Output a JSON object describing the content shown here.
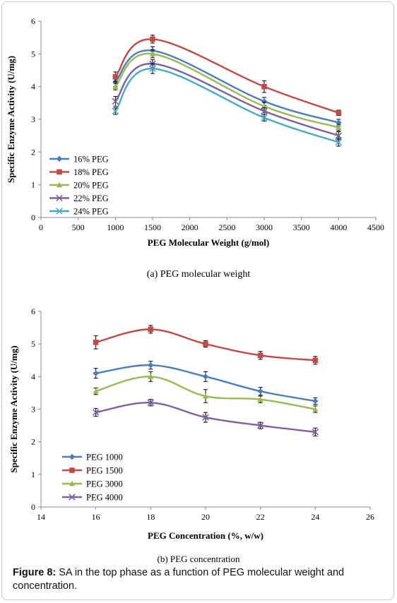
{
  "figure": {
    "label": "Figure 8:",
    "text": "SA in the top phase as a function of PEG molecular weight and concentration."
  },
  "chart_data": [
    {
      "type": "line",
      "caption": "(a) PEG molecular weight",
      "xlabel": "PEG Molecular Weight (g/mol)",
      "ylabel": "Specific Enzyme Activity (U/mg)",
      "xlim": [
        0,
        4500
      ],
      "ylim": [
        0,
        6
      ],
      "xticks": [
        0,
        500,
        1000,
        1500,
        2000,
        2500,
        3000,
        3500,
        4000,
        4500
      ],
      "yticks": [
        0,
        1,
        2,
        3,
        4,
        5,
        6
      ],
      "grid": false,
      "legend": "bottom-left",
      "x": [
        1000,
        1500,
        3000,
        4000
      ],
      "series": [
        {
          "name": "16% PEG",
          "color": "#4a7ebb",
          "marker": "diamond",
          "values": [
            4.15,
            5.1,
            3.55,
            2.9
          ],
          "errors": [
            0.15,
            0.12,
            0.12,
            0.1
          ]
        },
        {
          "name": "18% PEG",
          "color": "#be4b48",
          "marker": "square",
          "values": [
            4.3,
            5.45,
            4.0,
            3.2
          ],
          "errors": [
            0.15,
            0.12,
            0.18,
            0.08
          ]
        },
        {
          "name": "20% PEG",
          "color": "#98b954",
          "marker": "triangle",
          "values": [
            4.0,
            5.0,
            3.4,
            2.75
          ],
          "errors": [
            0.1,
            0.12,
            0.12,
            0.1
          ]
        },
        {
          "name": "22% PEG",
          "color": "#7d60a0",
          "marker": "x",
          "values": [
            3.55,
            4.7,
            3.25,
            2.5
          ],
          "errors": [
            0.15,
            0.12,
            0.1,
            0.12
          ]
        },
        {
          "name": "24% PEG",
          "color": "#46aac5",
          "marker": "x",
          "values": [
            3.25,
            4.55,
            3.05,
            2.3
          ],
          "errors": [
            0.1,
            0.15,
            0.1,
            0.12
          ]
        }
      ]
    },
    {
      "type": "line",
      "caption": "(b) PEG concentration",
      "xlabel": "PEG Concentration (%, w/w)",
      "ylabel": "Specific Enzyme Activity (U/mg)",
      "xlim": [
        14,
        26
      ],
      "ylim": [
        0,
        6
      ],
      "xticks": [
        14,
        16,
        18,
        20,
        22,
        24,
        26
      ],
      "yticks": [
        0,
        1,
        2,
        3,
        4,
        5,
        6
      ],
      "grid": false,
      "legend": "bottom-left",
      "x": [
        16,
        18,
        20,
        22,
        24
      ],
      "series": [
        {
          "name": "PEG 1000",
          "color": "#4a7ebb",
          "marker": "diamond",
          "values": [
            4.1,
            4.35,
            4.0,
            3.55,
            3.25
          ],
          "errors": [
            0.15,
            0.12,
            0.15,
            0.12,
            0.1
          ]
        },
        {
          "name": "PEG 1500",
          "color": "#be4b48",
          "marker": "square",
          "values": [
            5.05,
            5.45,
            5.0,
            4.65,
            4.5
          ],
          "errors": [
            0.2,
            0.12,
            0.1,
            0.12,
            0.12
          ]
        },
        {
          "name": "PEG 3000",
          "color": "#98b954",
          "marker": "triangle",
          "values": [
            3.55,
            4.0,
            3.4,
            3.3,
            3.0
          ],
          "errors": [
            0.1,
            0.15,
            0.2,
            0.1,
            0.1
          ]
        },
        {
          "name": "PEG 4000",
          "color": "#7d60a0",
          "marker": "x",
          "values": [
            2.9,
            3.2,
            2.75,
            2.5,
            2.3
          ],
          "errors": [
            0.12,
            0.1,
            0.15,
            0.1,
            0.12
          ]
        }
      ]
    }
  ]
}
